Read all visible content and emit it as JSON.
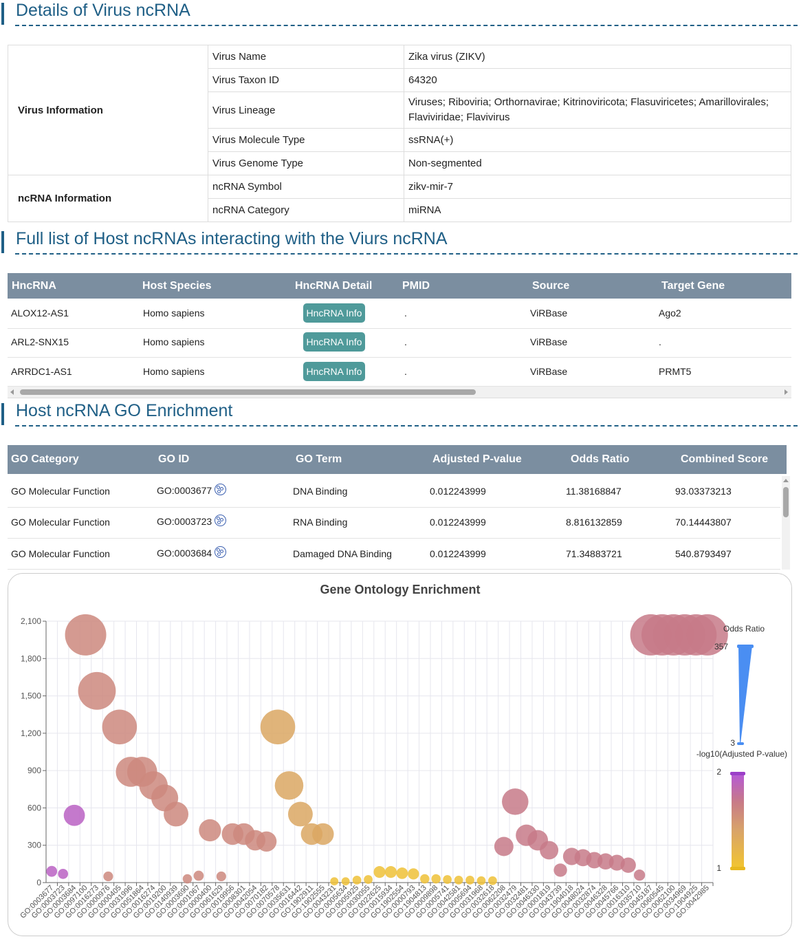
{
  "sections": {
    "details_title": "Details of Virus ncRNA",
    "host_title": "Full list of Host ncRNAs interacting with the Viurs ncRNA",
    "go_title": "Host ncRNA GO Enrichment"
  },
  "virus_info": {
    "group_label": "Virus Information",
    "rows": [
      {
        "key": "Virus Name",
        "value": "Zika virus (ZIKV)"
      },
      {
        "key": "Virus Taxon ID",
        "value": "64320"
      },
      {
        "key": "Virus Lineage",
        "value": "Viruses; Riboviria; Orthornavirae; Kitrinoviricota; Flasuviricetes; Amarillovirales; Flaviviridae; Flavivirus"
      },
      {
        "key": "Virus Molecule Type",
        "value": "ssRNA(+)"
      },
      {
        "key": "Virus Genome Type",
        "value": "Non-segmented"
      }
    ]
  },
  "ncrna_info": {
    "group_label": "ncRNA Information",
    "rows": [
      {
        "key": "ncRNA Symbol",
        "value": "zikv-mir-7"
      },
      {
        "key": "ncRNA Category",
        "value": "miRNA"
      }
    ]
  },
  "host_table": {
    "headers": [
      "HncRNA",
      "Host Species",
      "HncRNA Detail",
      "PMID",
      "Source",
      "Target Gene"
    ],
    "button_label": "HncRNA Info",
    "rows": [
      {
        "hncrna": "ALOX12-AS1",
        "species": "Homo sapiens",
        "pmid": ".",
        "source": "ViRBase",
        "target": "Ago2"
      },
      {
        "hncrna": "ARL2-SNX15",
        "species": "Homo sapiens",
        "pmid": ".",
        "source": "ViRBase",
        "target": "."
      },
      {
        "hncrna": "ARRDC1-AS1",
        "species": "Homo sapiens",
        "pmid": ".",
        "source": "ViRBase",
        "target": "PRMT5"
      }
    ]
  },
  "go_table": {
    "headers": [
      "GO Category",
      "GO ID",
      "GO Term",
      "Adjusted P-value",
      "Odds Ratio",
      "Combined Score"
    ],
    "rows": [
      {
        "category": "GO Molecular Function",
        "id": "GO:0003677",
        "term": "DNA Binding",
        "padj": "0.012243999",
        "odds": "11.38168847",
        "score": "93.03373213"
      },
      {
        "category": "GO Molecular Function",
        "id": "GO:0003723",
        "term": "RNA Binding",
        "padj": "0.012243999",
        "odds": "8.816132859",
        "score": "70.14443807"
      },
      {
        "category": "GO Molecular Function",
        "id": "GO:0003684",
        "term": "Damaged DNA Binding",
        "padj": "0.012243999",
        "odds": "71.34883721",
        "score": "540.8793497"
      }
    ]
  },
  "chart_data": {
    "type": "scatter",
    "title": "Gene Ontology Enrichment",
    "ylim": [
      0,
      2100
    ],
    "yticks": [
      0,
      300,
      600,
      900,
      1200,
      1500,
      1800,
      2100
    ],
    "ytick_labels": [
      "0",
      "300",
      "600",
      "900",
      "1,200",
      "1,500",
      "1,800",
      "2,100"
    ],
    "x_categories": [
      "GO:0003677",
      "GO:0003723",
      "GO:0003684",
      "GO:0097100",
      "GO:0016273",
      "GO:0000976",
      "GO:0000405",
      "GO:0031996",
      "GO:0051864",
      "GO:0016274",
      "GO:0019200",
      "GO:0140939",
      "GO:0003690",
      "GO:0001067",
      "GO:0000400",
      "GO:0061629",
      "GO:0019956",
      "GO:0008301",
      "GO:0042054",
      "GO:0070182",
      "GO:0070578",
      "GO:0035631",
      "GO:0016442",
      "GO:1902911",
      "GO:1902555",
      "GO:0043231",
      "GO:0005634",
      "GO:0005925",
      "GO:0030055",
      "GO:0022625",
      "GO:0015934",
      "GO:1902554",
      "GO:0000793",
      "GO:1904813",
      "GO:0009898",
      "GO:0005741",
      "GO:0042581",
      "GO:0005694",
      "GO:0031968",
      "GO:0032618",
      "GO:0062208",
      "GO:0032479",
      "GO:0032481",
      "GO:0046330",
      "GO:0001819",
      "GO:0043739",
      "GO:1904018",
      "GO:0048024",
      "GO:0032874",
      "GO:0046328",
      "GO:0045766",
      "GO:0016310",
      "GO:0035710",
      "GO:0045187",
      "GO:0060545",
      "GO:0062100",
      "GO:0034969",
      "GO:1904925",
      "GO:0042985"
    ],
    "visual_map_size": {
      "label": "Odds Ratio",
      "max": "357",
      "min": "3"
    },
    "visual_map_color": {
      "label": "-log10(Adjusted P-value)",
      "max": "2",
      "min": "1",
      "colors": [
        "#f2c530",
        "#d8a36a",
        "#c77a88",
        "#b558d8"
      ]
    },
    "points": [
      {
        "x": 0,
        "y": 90,
        "odds": 11,
        "p": 1.92
      },
      {
        "x": 1,
        "y": 70,
        "odds": 9,
        "p": 1.92
      },
      {
        "x": 2,
        "y": 540,
        "odds": 71,
        "p": 1.92
      },
      {
        "x": 3,
        "y": 1990,
        "odds": 357,
        "p": 1.6
      },
      {
        "x": 4,
        "y": 1540,
        "odds": 290,
        "p": 1.6
      },
      {
        "x": 5,
        "y": 50,
        "odds": 8,
        "p": 1.6
      },
      {
        "x": 6,
        "y": 1250,
        "odds": 240,
        "p": 1.6
      },
      {
        "x": 7,
        "y": 890,
        "odds": 170,
        "p": 1.6
      },
      {
        "x": 8,
        "y": 890,
        "odds": 170,
        "p": 1.6
      },
      {
        "x": 9,
        "y": 780,
        "odds": 150,
        "p": 1.6
      },
      {
        "x": 10,
        "y": 680,
        "odds": 130,
        "p": 1.6
      },
      {
        "x": 11,
        "y": 550,
        "odds": 105,
        "p": 1.6
      },
      {
        "x": 12,
        "y": 30,
        "odds": 7,
        "p": 1.6
      },
      {
        "x": 13,
        "y": 55,
        "odds": 9,
        "p": 1.6
      },
      {
        "x": 14,
        "y": 420,
        "odds": 80,
        "p": 1.6
      },
      {
        "x": 15,
        "y": 50,
        "odds": 8,
        "p": 1.6
      },
      {
        "x": 16,
        "y": 390,
        "odds": 75,
        "p": 1.6
      },
      {
        "x": 17,
        "y": 390,
        "odds": 75,
        "p": 1.6
      },
      {
        "x": 18,
        "y": 340,
        "odds": 65,
        "p": 1.6
      },
      {
        "x": 19,
        "y": 330,
        "odds": 63,
        "p": 1.6
      },
      {
        "x": 20,
        "y": 1250,
        "odds": 240,
        "p": 1.35
      },
      {
        "x": 21,
        "y": 780,
        "odds": 150,
        "p": 1.35
      },
      {
        "x": 22,
        "y": 550,
        "odds": 105,
        "p": 1.35
      },
      {
        "x": 23,
        "y": 390,
        "odds": 75,
        "p": 1.35
      },
      {
        "x": 24,
        "y": 390,
        "odds": 75,
        "p": 1.35
      },
      {
        "x": 25,
        "y": 10,
        "odds": 5,
        "p": 1.05
      },
      {
        "x": 26,
        "y": 10,
        "odds": 5,
        "p": 1.05
      },
      {
        "x": 27,
        "y": 20,
        "odds": 6,
        "p": 1.05
      },
      {
        "x": 28,
        "y": 25,
        "odds": 6,
        "p": 1.05
      },
      {
        "x": 29,
        "y": 85,
        "odds": 14,
        "p": 1.05
      },
      {
        "x": 30,
        "y": 85,
        "odds": 14,
        "p": 1.05
      },
      {
        "x": 31,
        "y": 75,
        "odds": 13,
        "p": 1.05
      },
      {
        "x": 32,
        "y": 70,
        "odds": 12,
        "p": 1.05
      },
      {
        "x": 33,
        "y": 30,
        "odds": 7,
        "p": 1.05
      },
      {
        "x": 34,
        "y": 30,
        "odds": 7,
        "p": 1.05
      },
      {
        "x": 35,
        "y": 25,
        "odds": 6,
        "p": 1.05
      },
      {
        "x": 36,
        "y": 20,
        "odds": 6,
        "p": 1.05
      },
      {
        "x": 37,
        "y": 20,
        "odds": 6,
        "p": 1.05
      },
      {
        "x": 38,
        "y": 15,
        "odds": 6,
        "p": 1.05
      },
      {
        "x": 39,
        "y": 15,
        "odds": 6,
        "p": 1.05
      },
      {
        "x": 40,
        "y": 290,
        "odds": 55,
        "p": 1.7
      },
      {
        "x": 41,
        "y": 650,
        "odds": 125,
        "p": 1.7
      },
      {
        "x": 42,
        "y": 380,
        "odds": 73,
        "p": 1.7
      },
      {
        "x": 43,
        "y": 340,
        "odds": 65,
        "p": 1.7
      },
      {
        "x": 44,
        "y": 260,
        "odds": 50,
        "p": 1.7
      },
      {
        "x": 45,
        "y": 100,
        "odds": 20,
        "p": 1.7
      },
      {
        "x": 46,
        "y": 210,
        "odds": 42,
        "p": 1.7
      },
      {
        "x": 47,
        "y": 200,
        "odds": 40,
        "p": 1.7
      },
      {
        "x": 48,
        "y": 180,
        "odds": 36,
        "p": 1.7
      },
      {
        "x": 49,
        "y": 170,
        "odds": 35,
        "p": 1.7
      },
      {
        "x": 50,
        "y": 160,
        "odds": 33,
        "p": 1.7
      },
      {
        "x": 51,
        "y": 140,
        "odds": 30,
        "p": 1.7
      },
      {
        "x": 52,
        "y": 60,
        "odds": 12,
        "p": 1.7
      },
      {
        "x": 53,
        "y": 1990,
        "odds": 357,
        "p": 1.7
      },
      {
        "x": 54,
        "y": 1990,
        "odds": 357,
        "p": 1.7
      },
      {
        "x": 55,
        "y": 1990,
        "odds": 357,
        "p": 1.7
      },
      {
        "x": 56,
        "y": 1990,
        "odds": 357,
        "p": 1.7
      },
      {
        "x": 57,
        "y": 1990,
        "odds": 357,
        "p": 1.7
      },
      {
        "x": 58,
        "y": 1990,
        "odds": 357,
        "p": 1.7
      }
    ]
  }
}
